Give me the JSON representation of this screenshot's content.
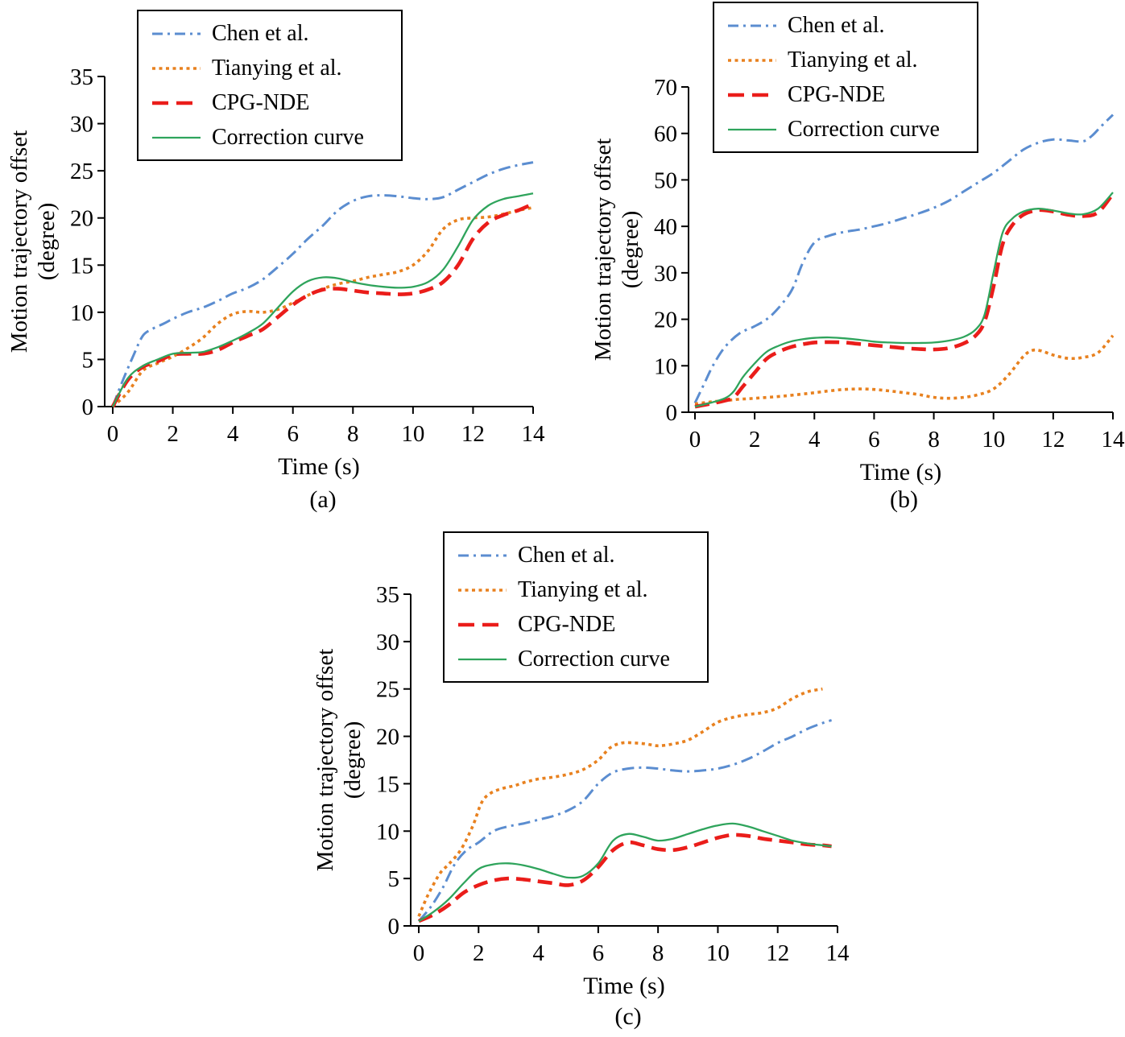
{
  "figure": {
    "sublabels": [
      "(a)",
      "(b)",
      "(c)"
    ]
  },
  "legend": {
    "position": "upper-left",
    "entries": [
      {
        "label": "Chen et al.",
        "color": "#5b8dd0",
        "style": "dashdot"
      },
      {
        "label": "Tianying et al.",
        "color": "#e8811f",
        "style": "dotted"
      },
      {
        "label": "CPG-NDE",
        "color": "#ea1d1a",
        "style": "dashed"
      },
      {
        "label": "Correction curve",
        "color": "#2fa45c",
        "style": "solid"
      }
    ]
  },
  "chart_data": [
    {
      "type": "line",
      "xlabel": "Time (s)",
      "ylabel_lines": [
        "Motion trajectory offset",
        "(degree)"
      ],
      "xlim": [
        0,
        14
      ],
      "ylim": [
        0,
        35
      ],
      "xticks": [
        0,
        2,
        4,
        6,
        8,
        10,
        12,
        14
      ],
      "yticks": [
        0,
        5,
        10,
        15,
        20,
        25,
        30,
        35
      ],
      "grid": false,
      "series": [
        {
          "name": "Chen et al.",
          "x": [
            0,
            0.3,
            0.7,
            1,
            1.3,
            1.7,
            2,
            2.5,
            3,
            3.5,
            4,
            4.5,
            5,
            5.5,
            6,
            6.5,
            7,
            7.5,
            8,
            8.5,
            9,
            9.5,
            10,
            10.5,
            11,
            11.5,
            12,
            12.5,
            13,
            13.5,
            14
          ],
          "y": [
            0,
            2.5,
            5.5,
            7.5,
            8.2,
            8.8,
            9.3,
            10,
            10.5,
            11.2,
            12,
            12.6,
            13.5,
            14.8,
            16.2,
            17.8,
            19.2,
            20.8,
            21.8,
            22.3,
            22.4,
            22.3,
            22.1,
            22,
            22.2,
            23,
            23.8,
            24.6,
            25.2,
            25.6,
            25.9
          ]
        },
        {
          "name": "Tianying et al.",
          "x": [
            0,
            0.5,
            1,
            1.5,
            2,
            2.5,
            3,
            3.5,
            4,
            4.5,
            5,
            5.5,
            6,
            6.5,
            7,
            7.5,
            8,
            8.5,
            9,
            9.5,
            10,
            10.5,
            11,
            11.5,
            12,
            12.5,
            13,
            13.5,
            14
          ],
          "y": [
            0,
            1.5,
            3.8,
            4.6,
            5.3,
            6.2,
            7.3,
            8.8,
            9.8,
            10.1,
            10,
            10.3,
            11,
            11.8,
            12.5,
            13,
            13.3,
            13.7,
            14,
            14.3,
            15,
            16.5,
            18.8,
            19.8,
            20,
            20.1,
            20.4,
            20.8,
            21.1
          ]
        },
        {
          "name": "CPG-NDE",
          "x": [
            0,
            0.5,
            1,
            1.5,
            2,
            2.5,
            3,
            3.5,
            4,
            4.5,
            5,
            5.5,
            6,
            6.5,
            7,
            7.5,
            8,
            8.5,
            9,
            9.5,
            10,
            10.5,
            11,
            11.5,
            12,
            12.5,
            13,
            13.5,
            14
          ],
          "y": [
            0,
            2.8,
            4.2,
            4.8,
            5.5,
            5.6,
            5.6,
            6,
            6.8,
            7.5,
            8.2,
            9.5,
            10.8,
            11.8,
            12.4,
            12.5,
            12.3,
            12.1,
            12,
            11.9,
            12,
            12.4,
            13.2,
            15,
            17.8,
            19.5,
            20.3,
            20.8,
            21.5
          ]
        },
        {
          "name": "Correction curve",
          "x": [
            0,
            0.5,
            1,
            1.5,
            2,
            2.5,
            3,
            3.5,
            4,
            4.5,
            5,
            5.5,
            6,
            6.5,
            7,
            7.5,
            8,
            8.5,
            9,
            9.5,
            10,
            10.5,
            11,
            11.5,
            12,
            12.5,
            13,
            13.5,
            14
          ],
          "y": [
            0,
            3,
            4.3,
            5,
            5.6,
            5.7,
            5.8,
            6.3,
            7,
            7.8,
            8.8,
            10.5,
            12.2,
            13.3,
            13.7,
            13.6,
            13.2,
            12.9,
            12.7,
            12.6,
            12.7,
            13.2,
            14.5,
            17,
            19.8,
            21.3,
            22,
            22.3,
            22.6
          ]
        }
      ]
    },
    {
      "type": "line",
      "xlabel": "Time (s)",
      "ylabel_lines": [
        "Motion trajectory offset",
        "(degree)"
      ],
      "xlim": [
        0,
        14
      ],
      "ylim": [
        0,
        70
      ],
      "xticks": [
        0,
        2,
        4,
        6,
        8,
        10,
        12,
        14
      ],
      "yticks": [
        0,
        10,
        20,
        30,
        40,
        50,
        60,
        70
      ],
      "grid": false,
      "series": [
        {
          "name": "Chen et al.",
          "x": [
            0,
            0.3,
            0.6,
            1,
            1.5,
            2,
            2.5,
            3,
            3.3,
            3.6,
            4,
            4.5,
            5,
            5.5,
            6,
            6.5,
            7,
            7.5,
            8,
            8.5,
            9,
            9.5,
            10,
            10.5,
            11,
            11.5,
            12,
            12.5,
            13,
            13.3,
            13.6,
            14
          ],
          "y": [
            2,
            6,
            10,
            14,
            17,
            18.5,
            20.5,
            24,
            27,
            32,
            36.5,
            38,
            38.8,
            39.3,
            40,
            40.8,
            41.8,
            42.8,
            44,
            45.5,
            47.5,
            49.5,
            51.5,
            54,
            56.5,
            58,
            58.7,
            58.5,
            58.3,
            59.5,
            61.5,
            64
          ]
        },
        {
          "name": "Tianying et al.",
          "x": [
            0,
            0.5,
            1,
            1.5,
            2,
            3,
            4,
            4.5,
            5,
            5.5,
            6,
            6.5,
            7,
            7.5,
            8,
            8.5,
            9,
            9.5,
            10,
            10.5,
            11,
            11.3,
            11.6,
            12,
            12.5,
            13,
            13.5,
            14
          ],
          "y": [
            1.8,
            2.2,
            2.5,
            2.8,
            3,
            3.5,
            4.2,
            4.6,
            4.9,
            5,
            4.9,
            4.6,
            4.2,
            3.8,
            3.2,
            3,
            3.2,
            3.8,
            5,
            8,
            12,
            13.3,
            13.2,
            12.3,
            11.6,
            11.8,
            12.8,
            16.5
          ]
        },
        {
          "name": "CPG-NDE",
          "x": [
            0,
            0.5,
            1,
            1.3,
            1.6,
            2,
            2.4,
            2.8,
            3.2,
            3.6,
            4,
            4.5,
            5,
            5.5,
            6,
            6.5,
            7,
            7.5,
            8,
            8.5,
            9,
            9.4,
            9.7,
            10,
            10.3,
            10.6,
            11,
            11.5,
            12,
            12.5,
            13,
            13.5,
            14
          ],
          "y": [
            1.2,
            1.8,
            2.5,
            3.2,
            5.5,
            8.5,
            11.5,
            13,
            14,
            14.6,
            15,
            15.1,
            15,
            14.7,
            14.4,
            14.1,
            13.8,
            13.6,
            13.5,
            13.8,
            14.8,
            16.5,
            19.5,
            27,
            36,
            40,
            42.5,
            43.5,
            43.2,
            42.5,
            42.2,
            43,
            47
          ]
        },
        {
          "name": "Correction curve",
          "x": [
            0,
            0.5,
            1,
            1.3,
            1.6,
            2,
            2.4,
            2.8,
            3.2,
            3.6,
            4,
            4.5,
            5,
            5.5,
            6,
            6.5,
            7,
            7.5,
            8,
            8.5,
            9,
            9.4,
            9.7,
            10,
            10.3,
            10.6,
            11,
            11.5,
            12,
            12.5,
            13,
            13.5,
            14
          ],
          "y": [
            1.2,
            2,
            3,
            4.5,
            7.5,
            10.5,
            13,
            14.3,
            15.2,
            15.7,
            16,
            16.1,
            15.9,
            15.6,
            15.2,
            15,
            14.9,
            14.9,
            15,
            15.4,
            16.2,
            17.8,
            21,
            30,
            38.5,
            41.5,
            43.2,
            43.8,
            43.4,
            42.8,
            42.6,
            43.8,
            47.3
          ]
        }
      ]
    },
    {
      "type": "line",
      "xlabel": "Time (s)",
      "ylabel_lines": [
        "Motion trajectory offset",
        "(degree)"
      ],
      "xlim": [
        0,
        14
      ],
      "ylim": [
        0,
        35
      ],
      "xticks": [
        0,
        2,
        4,
        6,
        8,
        10,
        12,
        14
      ],
      "yticks": [
        0,
        5,
        10,
        15,
        20,
        25,
        30,
        35
      ],
      "grid": false,
      "series": [
        {
          "name": "Chen et al.",
          "x": [
            0,
            0.4,
            0.8,
            1.2,
            1.6,
            2,
            2.5,
            3,
            3.5,
            4,
            4.5,
            5,
            5.5,
            6,
            6.5,
            7,
            7.5,
            8,
            8.5,
            9,
            9.5,
            10,
            10.5,
            11,
            11.5,
            12,
            12.5,
            13,
            13.5,
            13.8
          ],
          "y": [
            0.5,
            2,
            4,
            6.5,
            8,
            8.8,
            10,
            10.5,
            10.8,
            11.2,
            11.6,
            12.2,
            13.2,
            15,
            16.2,
            16.6,
            16.7,
            16.6,
            16.4,
            16.3,
            16.4,
            16.6,
            17,
            17.6,
            18.4,
            19.3,
            20,
            20.8,
            21.4,
            21.7
          ]
        },
        {
          "name": "Tianying et al.",
          "x": [
            0,
            0.3,
            0.7,
            1,
            1.4,
            1.8,
            2.1,
            2.4,
            2.8,
            3.2,
            3.6,
            4,
            4.5,
            5,
            5.5,
            6,
            6.4,
            6.8,
            7.2,
            7.6,
            8,
            8.5,
            9,
            9.5,
            10,
            10.5,
            11,
            11.5,
            12,
            12.5,
            13,
            13.5
          ],
          "y": [
            1,
            3.2,
            5.5,
            6.5,
            8,
            10.5,
            13,
            14,
            14.5,
            14.8,
            15.2,
            15.5,
            15.7,
            16,
            16.5,
            17.5,
            18.8,
            19.3,
            19.3,
            19.2,
            19,
            19.2,
            19.6,
            20.5,
            21.5,
            22,
            22.3,
            22.5,
            23,
            24,
            24.7,
            25
          ]
        },
        {
          "name": "CPG-NDE",
          "x": [
            0,
            0.5,
            1,
            1.5,
            2,
            2.5,
            3,
            3.5,
            4,
            4.5,
            5,
            5.5,
            6,
            6.5,
            7,
            7.5,
            8,
            8.5,
            9,
            9.5,
            10,
            10.5,
            11,
            11.5,
            12,
            12.5,
            13,
            13.5,
            13.8
          ],
          "y": [
            0.5,
            1.2,
            2.2,
            3.5,
            4.3,
            4.8,
            5,
            4.9,
            4.7,
            4.5,
            4.3,
            4.8,
            6.2,
            8,
            8.8,
            8.5,
            8.1,
            8,
            8.3,
            8.8,
            9.3,
            9.6,
            9.5,
            9.2,
            9,
            8.8,
            8.6,
            8.5,
            8.4
          ]
        },
        {
          "name": "Correction curve",
          "x": [
            0,
            0.5,
            1,
            1.5,
            2,
            2.5,
            3,
            3.5,
            4,
            4.5,
            5,
            5.5,
            6,
            6.5,
            7,
            7.5,
            8,
            8.5,
            9,
            9.5,
            10,
            10.5,
            11,
            11.5,
            12,
            12.5,
            13,
            13.5,
            13.8
          ],
          "y": [
            0.5,
            1.5,
            2.8,
            4.5,
            6,
            6.5,
            6.6,
            6.4,
            6,
            5.5,
            5.1,
            5.3,
            6.6,
            9,
            9.7,
            9.4,
            9,
            9.2,
            9.7,
            10.2,
            10.6,
            10.8,
            10.5,
            10,
            9.5,
            9,
            8.7,
            8.5,
            8.4
          ]
        }
      ]
    }
  ]
}
